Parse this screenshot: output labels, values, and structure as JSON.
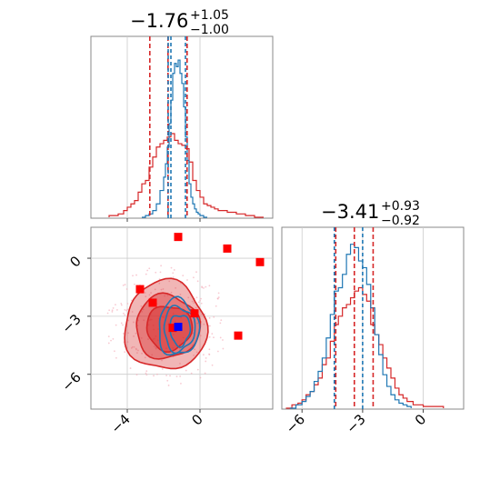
{
  "chart_data": {
    "type": "corner",
    "colors": {
      "red": "#d62728",
      "blue": "#1f77b4",
      "marker_red": "#ff0000",
      "marker_blue": "#0000ff",
      "grid": "#cccccc"
    },
    "panels": [
      {
        "id": "hist-x",
        "type": "histogram",
        "title": {
          "value": "−1.76",
          "sup": "+1.05",
          "sub": "−1.00"
        },
        "xlim": [
          -6,
          4
        ],
        "grid_x": [
          -4,
          0
        ],
        "red_quantile_lines": [
          -2.76,
          -1.76,
          -0.71
        ],
        "blue_quantile_lines": [
          -1.75,
          -1.6,
          -0.8
        ],
        "red_series": {
          "bins": [
            -5.0,
            -4.5,
            -4.2,
            -4.0,
            -3.8,
            -3.6,
            -3.4,
            -3.2,
            -3.0,
            -2.8,
            -2.6,
            -2.4,
            -2.2,
            -2.0,
            -1.8,
            -1.6,
            -1.4,
            -1.2,
            -1.0,
            -0.8,
            -0.6,
            -0.4,
            -0.2,
            0.0,
            0.2,
            0.4,
            0.6,
            0.8,
            1.0,
            1.5,
            2.0,
            2.5,
            3.0,
            3.5
          ],
          "counts": [
            0.01,
            0.02,
            0.04,
            0.06,
            0.08,
            0.1,
            0.15,
            0.2,
            0.22,
            0.3,
            0.36,
            0.42,
            0.44,
            0.46,
            0.48,
            0.5,
            0.46,
            0.44,
            0.43,
            0.41,
            0.33,
            0.22,
            0.16,
            0.12,
            0.08,
            0.07,
            0.06,
            0.05,
            0.04,
            0.03,
            0.02,
            0.01,
            0.0
          ]
        },
        "blue_series": {
          "bins": [
            -3.2,
            -3.0,
            -2.8,
            -2.6,
            -2.4,
            -2.2,
            -2.0,
            -1.9,
            -1.8,
            -1.7,
            -1.6,
            -1.5,
            -1.4,
            -1.3,
            -1.2,
            -1.1,
            -1.0,
            -0.9,
            -0.8,
            -0.7,
            -0.6,
            -0.5,
            -0.4,
            -0.3,
            -0.2,
            -0.1,
            0.0,
            0.2,
            0.4
          ],
          "counts": [
            0.0,
            0.01,
            0.02,
            0.04,
            0.08,
            0.16,
            0.24,
            0.32,
            0.42,
            0.56,
            0.7,
            0.86,
            0.92,
            0.9,
            0.94,
            0.86,
            0.8,
            0.66,
            0.48,
            0.34,
            0.2,
            0.12,
            0.08,
            0.05,
            0.03,
            0.02,
            0.01,
            0.0
          ]
        }
      },
      {
        "id": "scatter-xy",
        "type": "contour",
        "xlim": [
          -6,
          4
        ],
        "ylim": [
          -7.8,
          1.6
        ],
        "x_ticks": [
          "−4",
          "0"
        ],
        "x_tick_values": [
          -4,
          0
        ],
        "y_ticks": [
          "0",
          "−3",
          "−6"
        ],
        "y_tick_values": [
          0,
          -3,
          -6
        ],
        "red_contour_levels": [
          {
            "cx": -1.9,
            "cy": -3.5,
            "rx": 2.25,
            "ry": 2.3,
            "fill_opacity": 0.45
          },
          {
            "cx": -1.8,
            "cy": -3.55,
            "rx": 1.75,
            "ry": 1.65,
            "fill_opacity": 0.55
          },
          {
            "cx": -1.7,
            "cy": -3.6,
            "rx": 1.25,
            "ry": 1.15,
            "fill_opacity": 0.65
          }
        ],
        "blue_contour_levels": [
          {
            "cx": -1.2,
            "cy": -3.6,
            "rx": 1.1,
            "ry": 1.45
          },
          {
            "cx": -1.15,
            "cy": -3.65,
            "rx": 0.85,
            "ry": 1.15
          },
          {
            "cx": -1.1,
            "cy": -3.7,
            "rx": 0.55,
            "ry": 0.8
          }
        ],
        "red_markers": [
          {
            "x": -1.2,
            "y": 1.1
          },
          {
            "x": 1.5,
            "y": 0.5
          },
          {
            "x": 3.3,
            "y": -0.2
          },
          {
            "x": -3.3,
            "y": -1.6
          },
          {
            "x": -2.6,
            "y": -2.3
          },
          {
            "x": -0.3,
            "y": -2.85
          },
          {
            "x": -1.5,
            "y": -3.6
          },
          {
            "x": 2.1,
            "y": -4.0
          }
        ],
        "blue_markers": [
          {
            "x": -1.2,
            "y": -3.55
          }
        ]
      },
      {
        "id": "hist-y",
        "type": "histogram",
        "title": {
          "value": "−3.41",
          "sup": "+0.93",
          "sub": "−0.92"
        },
        "xlim": [
          -7,
          2
        ],
        "x_ticks": [
          "−6",
          "−3",
          "0"
        ],
        "x_tick_values": [
          -6,
          -3,
          0
        ],
        "red_quantile_lines": [
          -4.33,
          -3.41,
          -2.48
        ],
        "blue_quantile_lines": [
          -4.4,
          -3.0
        ],
        "red_series": {
          "bins": [
            -6.8,
            -6.5,
            -6.2,
            -6.0,
            -5.8,
            -5.6,
            -5.4,
            -5.2,
            -5.0,
            -4.8,
            -4.6,
            -4.4,
            -4.2,
            -4.0,
            -3.8,
            -3.6,
            -3.4,
            -3.2,
            -3.0,
            -2.8,
            -2.6,
            -2.4,
            -2.2,
            -2.0,
            -1.8,
            -1.6,
            -1.4,
            -1.2,
            -1.0,
            -0.8,
            -0.5,
            0.0,
            0.5,
            1.0
          ],
          "counts": [
            0.0,
            0.02,
            0.03,
            0.05,
            0.08,
            0.1,
            0.14,
            0.18,
            0.26,
            0.3,
            0.4,
            0.5,
            0.55,
            0.6,
            0.62,
            0.66,
            0.7,
            0.72,
            0.68,
            0.64,
            0.5,
            0.44,
            0.38,
            0.3,
            0.24,
            0.18,
            0.12,
            0.08,
            0.06,
            0.04,
            0.02,
            0.01,
            0.01
          ]
        },
        "blue_series": {
          "bins": [
            -6.6,
            -6.3,
            -6.0,
            -5.8,
            -5.6,
            -5.4,
            -5.2,
            -5.0,
            -4.8,
            -4.6,
            -4.4,
            -4.2,
            -4.0,
            -3.8,
            -3.6,
            -3.4,
            -3.2,
            -3.0,
            -2.8,
            -2.6,
            -2.4,
            -2.2,
            -2.0,
            -1.8,
            -1.6,
            -1.4,
            -1.2,
            -1.0,
            -0.8,
            -0.6
          ],
          "counts": [
            0.0,
            0.02,
            0.04,
            0.07,
            0.1,
            0.16,
            0.22,
            0.3,
            0.42,
            0.56,
            0.7,
            0.72,
            0.8,
            0.92,
            0.98,
            0.96,
            0.88,
            0.84,
            0.74,
            0.6,
            0.44,
            0.32,
            0.2,
            0.13,
            0.08,
            0.05,
            0.03,
            0.02,
            0.01
          ]
        }
      }
    ]
  }
}
